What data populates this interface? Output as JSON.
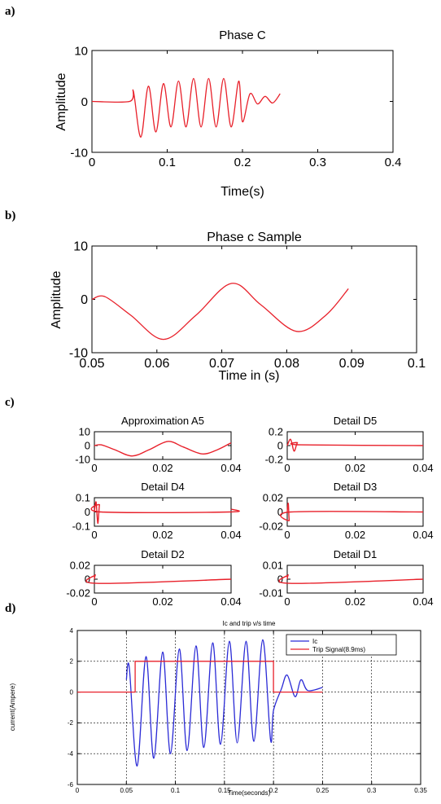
{
  "panels": [
    {
      "id": "a",
      "label": "a)"
    },
    {
      "id": "b",
      "label": "b)"
    },
    {
      "id": "c",
      "label": "c)"
    },
    {
      "id": "d",
      "label": "d)"
    }
  ],
  "chart_data": [
    {
      "id": "a",
      "type": "line",
      "title": "Phase C",
      "xlabel": "Time(s)",
      "ylabel": "Amplitude",
      "xlim": [
        0,
        0.4
      ],
      "ylim": [
        -10,
        10
      ],
      "xticks": [
        "0",
        "0.1",
        "0.2",
        "0.3",
        "0.4"
      ],
      "yticks": [
        "-10",
        "0",
        "10"
      ],
      "grid": false,
      "series": [
        {
          "color": "#e8202a",
          "x": [
            0,
            0.05,
            0.055,
            0.065,
            0.075,
            0.085,
            0.095,
            0.105,
            0.115,
            0.125,
            0.135,
            0.145,
            0.155,
            0.165,
            0.175,
            0.185,
            0.195,
            0.2,
            0.21,
            0.22,
            0.23,
            0.24,
            0.25
          ],
          "y": [
            0,
            0,
            2,
            -7,
            3,
            -6,
            3.5,
            -5,
            4,
            -5,
            4.5,
            -5,
            4.5,
            -5,
            4.5,
            -5,
            4,
            -4,
            1.5,
            -0.5,
            1,
            -0.3,
            1.5
          ]
        }
      ]
    },
    {
      "id": "b",
      "type": "line",
      "title": "Phase c Sample",
      "xlabel": "Time in (s)",
      "ylabel": "Amplitude",
      "xlim": [
        0.05,
        0.1
      ],
      "ylim": [
        -10,
        10
      ],
      "xticks": [
        "0.05",
        "0.06",
        "0.07",
        "0.08",
        "0.09",
        "0.1"
      ],
      "yticks": [
        "-10",
        "0",
        "10"
      ],
      "grid": false,
      "series": [
        {
          "color": "#e8202a",
          "x": [
            0.05,
            0.052,
            0.056,
            0.061,
            0.066,
            0.0715,
            0.076,
            0.0815,
            0.086,
            0.0895
          ],
          "y": [
            0,
            0.5,
            -3,
            -7.5,
            -3,
            3,
            -1,
            -6,
            -3,
            2
          ]
        }
      ]
    },
    {
      "id": "c1",
      "type": "line",
      "title": "Approximation A5",
      "xlim": [
        0,
        0.04
      ],
      "ylim": [
        -10,
        10
      ],
      "xticks": [
        "0",
        "0.02",
        "0.04"
      ],
      "yticks": [
        "-10",
        "0",
        "10"
      ],
      "series": [
        {
          "color": "#e8202a",
          "x": [
            0,
            0.002,
            0.006,
            0.011,
            0.016,
            0.0215,
            0.026,
            0.0315,
            0.036,
            0.04
          ],
          "y": [
            0,
            0.5,
            -3,
            -7.5,
            -3,
            3,
            -1,
            -6,
            -3,
            2
          ]
        }
      ]
    },
    {
      "id": "c2",
      "type": "line",
      "title": "Detail D5",
      "xlim": [
        0,
        0.04
      ],
      "ylim": [
        -0.2,
        0.2
      ],
      "xticks": [
        "0",
        "0.02",
        "0.04"
      ],
      "yticks": [
        "-0.2",
        "0",
        "0.2"
      ],
      "series": [
        {
          "color": "#e8202a",
          "x": [
            0,
            0.001,
            0.002,
            0.003,
            0.004,
            0.04
          ],
          "y": [
            0,
            0.09,
            -0.08,
            0.04,
            0.01,
            0
          ]
        }
      ]
    },
    {
      "id": "c3",
      "type": "line",
      "title": "Detail D4",
      "xlim": [
        0,
        0.04
      ],
      "ylim": [
        -0.1,
        0.1
      ],
      "xticks": [
        "0",
        "0.02",
        "0.04"
      ],
      "yticks": [
        "-0.1",
        "0",
        "0.1"
      ],
      "series": [
        {
          "color": "#e8202a",
          "x": [
            0,
            0.0005,
            0.001,
            0.0015,
            0.002,
            0.0395,
            0.04
          ],
          "y": [
            0,
            0.07,
            -0.08,
            0.05,
            0,
            0,
            0.02
          ]
        }
      ]
    },
    {
      "id": "c4",
      "type": "line",
      "title": "Detail D3",
      "xlim": [
        0,
        0.04
      ],
      "ylim": [
        -0.02,
        0.02
      ],
      "xticks": [
        "0",
        "0.02",
        "0.04"
      ],
      "yticks": [
        "-0.02",
        "0",
        "0.02"
      ],
      "series": [
        {
          "color": "#e8202a",
          "x": [
            0,
            0.0003,
            0.0006,
            0.001,
            0.04
          ],
          "y": [
            0,
            0.012,
            -0.012,
            0,
            0
          ]
        }
      ]
    },
    {
      "id": "c5",
      "type": "line",
      "title": "Detail D2",
      "xlim": [
        0,
        0.04
      ],
      "ylim": [
        -0.02,
        0.02
      ],
      "xticks": [
        "0",
        "0.02",
        "0.04"
      ],
      "yticks": [
        "-0.02",
        "0",
        "0.02"
      ],
      "series": [
        {
          "color": "#e8202a",
          "x": [
            0,
            0.0003,
            0.0006,
            0.04
          ],
          "y": [
            0,
            0.006,
            -0.006,
            0
          ]
        }
      ]
    },
    {
      "id": "c6",
      "type": "line",
      "title": "Detail D1",
      "xlim": [
        0,
        0.04
      ],
      "ylim": [
        -0.01,
        0.01
      ],
      "xticks": [
        "0",
        "0.02",
        "0.04"
      ],
      "yticks": [
        "-0.01",
        "0",
        "0.01"
      ],
      "series": [
        {
          "color": "#e8202a",
          "x": [
            0,
            0.0003,
            0.0006,
            0.04
          ],
          "y": [
            0,
            0.003,
            -0.003,
            0
          ]
        }
      ]
    },
    {
      "id": "d",
      "type": "line",
      "title": "Ic and trip v/s time",
      "xlabel": "Time(seconds)",
      "ylabel": "current(Ampere)",
      "xlim": [
        0,
        0.35
      ],
      "ylim": [
        -6,
        4
      ],
      "xticks": [
        "0",
        "0.05",
        "0.1",
        "0.15",
        "0.2",
        "0.25",
        "0.3",
        "0.35"
      ],
      "yticks": [
        "-6",
        "-4",
        "-2",
        "0",
        "2",
        "4"
      ],
      "grid": true,
      "legend": "top-right",
      "series": [
        {
          "name": "Ic",
          "color": "#2b2bd6",
          "x": [
            0.05,
            0.053,
            0.061,
            0.07,
            0.078,
            0.087,
            0.095,
            0.104,
            0.112,
            0.121,
            0.129,
            0.138,
            0.146,
            0.155,
            0.163,
            0.172,
            0.18,
            0.189,
            0.197,
            0.2,
            0.208,
            0.214,
            0.222,
            0.228,
            0.235,
            0.25
          ],
          "y": [
            0.8,
            1.6,
            -4.8,
            2.3,
            -4.3,
            2.6,
            -4.0,
            2.8,
            -3.8,
            3.0,
            -3.6,
            3.2,
            -3.4,
            3.3,
            -3.3,
            3.3,
            -3.2,
            3.4,
            -3.1,
            -1.2,
            0.2,
            1.1,
            -0.3,
            0.8,
            0.1,
            0.3
          ]
        },
        {
          "name": "Trip Signal(8.9ms)",
          "color": "#e8202a",
          "x": [
            0,
            0.059,
            0.059,
            0.2,
            0.2,
            0.25
          ],
          "y": [
            0,
            0,
            2,
            2,
            0,
            0
          ]
        }
      ]
    }
  ]
}
